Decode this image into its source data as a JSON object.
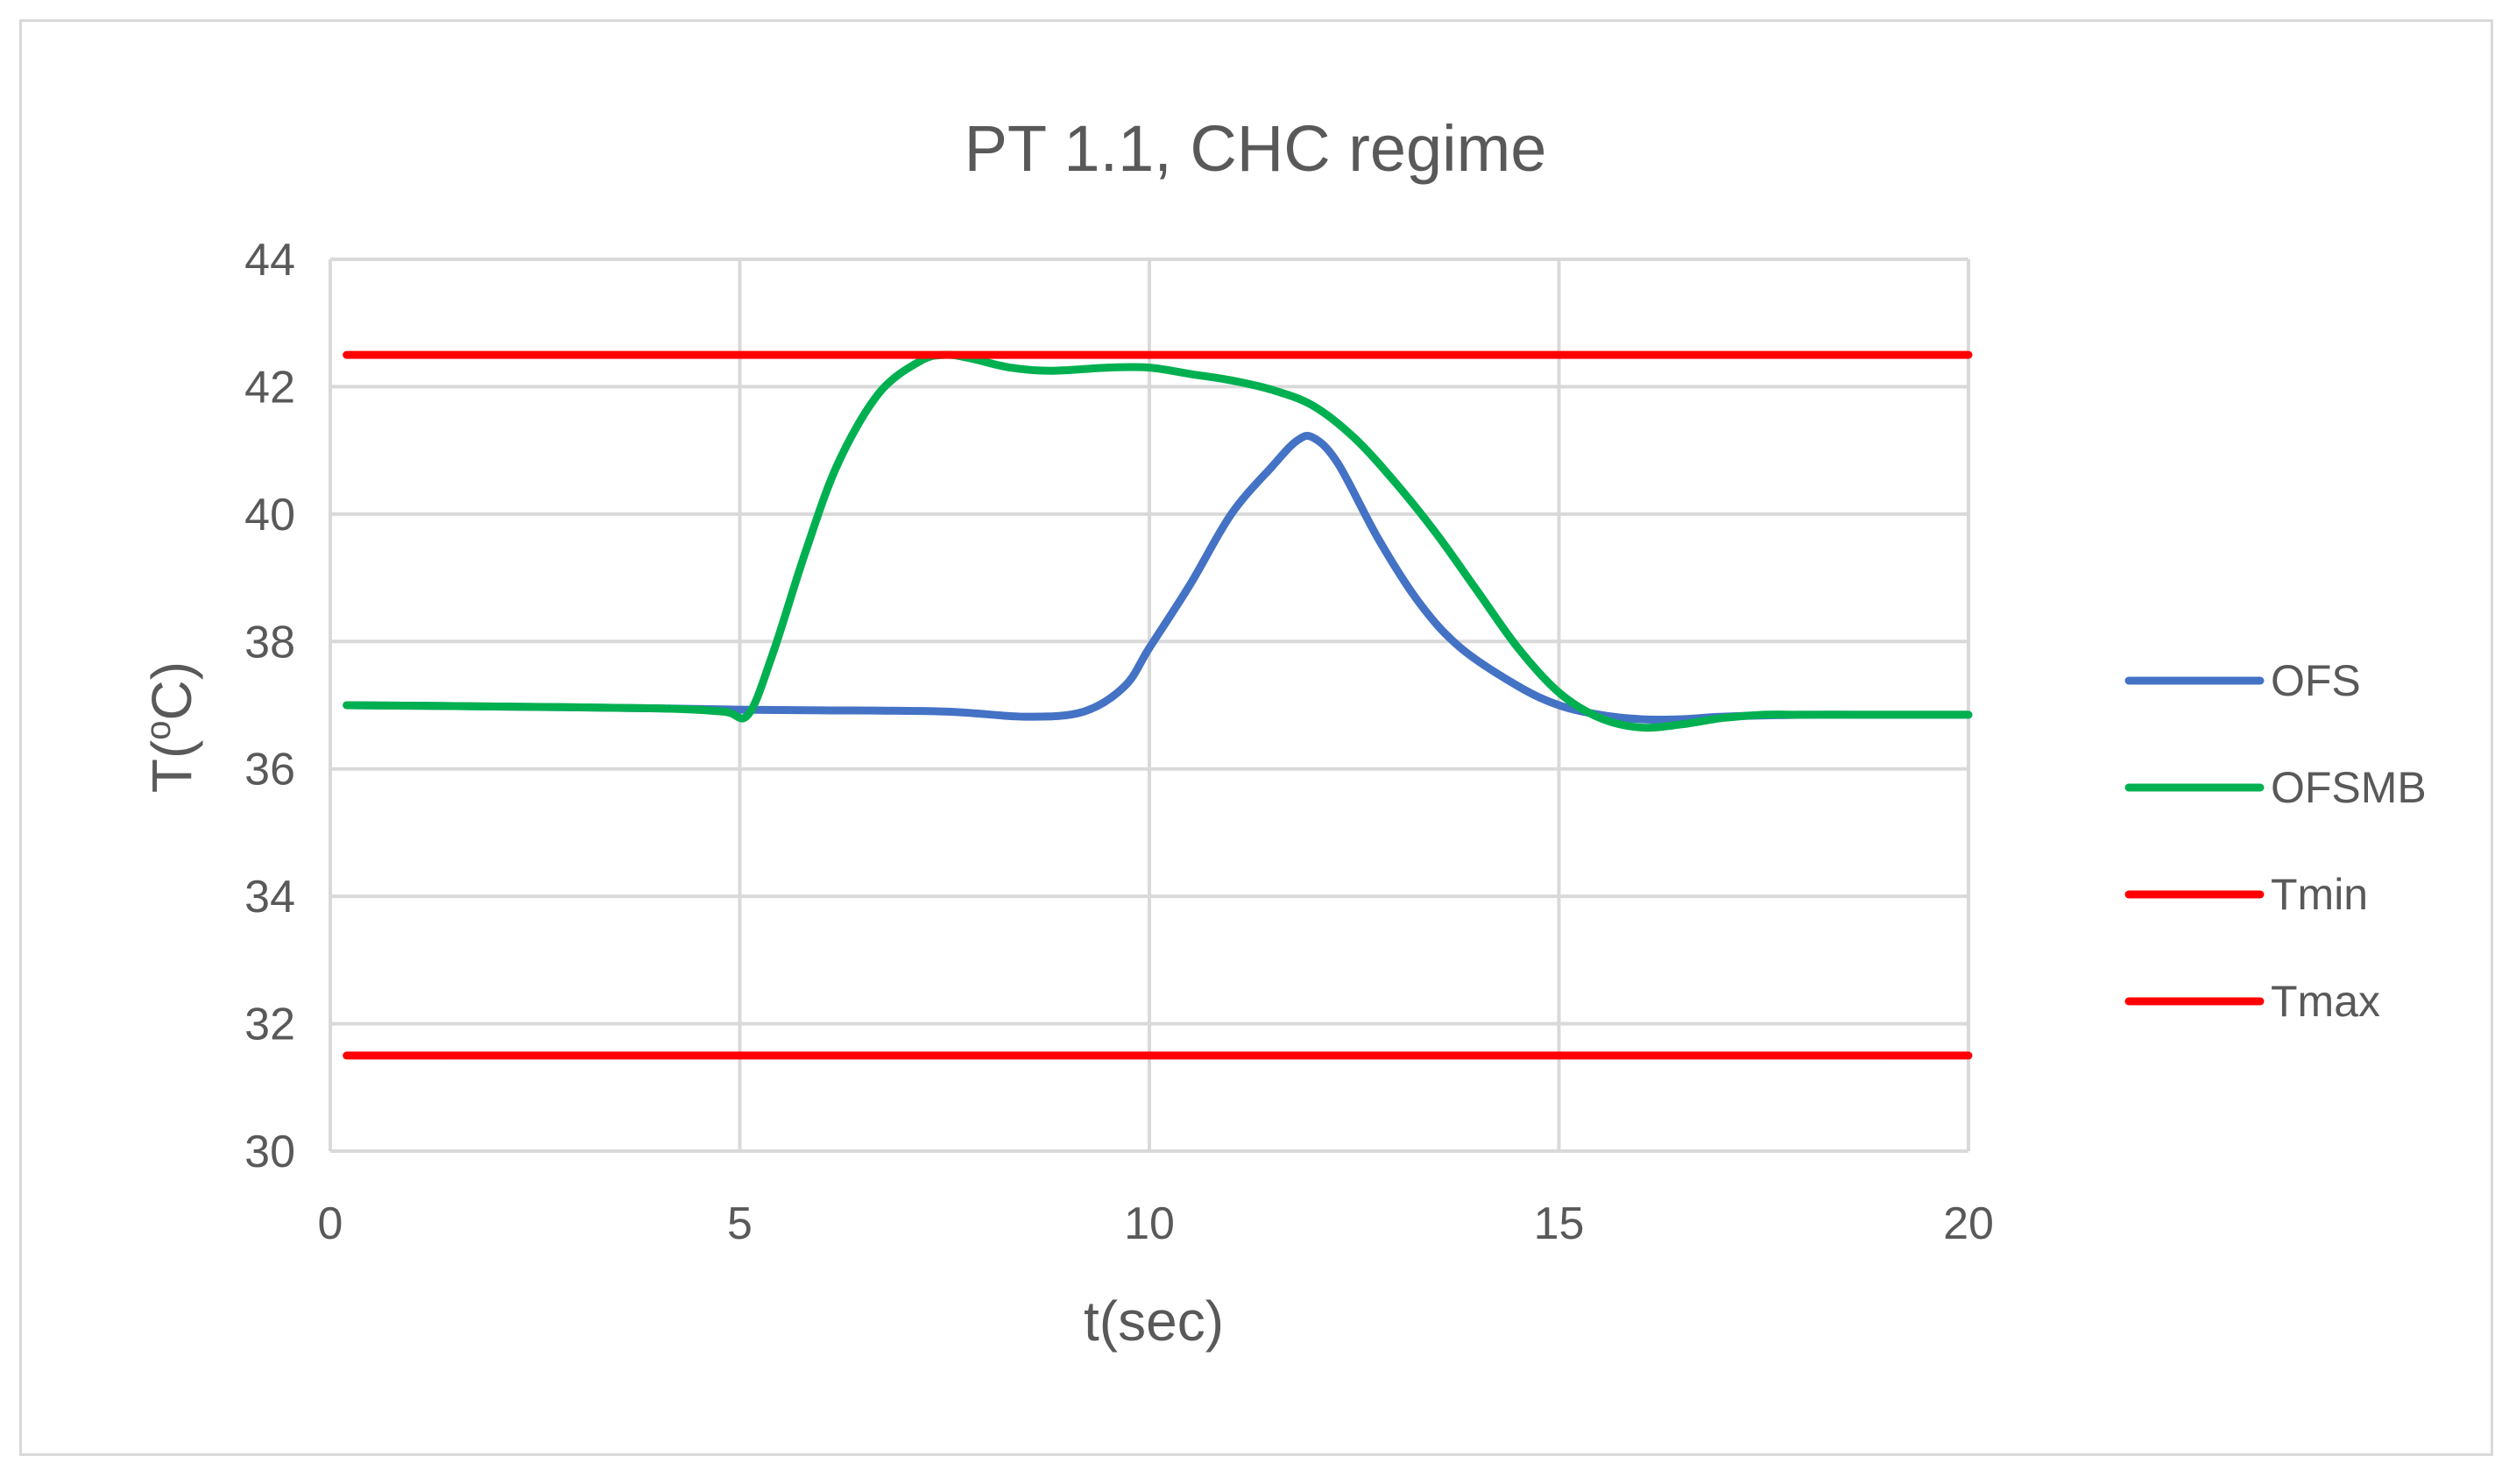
{
  "chart_data": {
    "type": "line",
    "title": "PT 1.1, CHC regime",
    "xlabel": "t(sec)",
    "ylabel_main": "T(",
    "ylabel_sup": "o",
    "ylabel_end": "C)",
    "xlim": [
      0,
      20
    ],
    "ylim": [
      30,
      44
    ],
    "xticks": [
      0,
      5,
      10,
      15,
      20
    ],
    "yticks": [
      30,
      32,
      34,
      36,
      38,
      40,
      42,
      44
    ],
    "grid": true,
    "legend_position": "right",
    "series": [
      {
        "name": "OFS",
        "color": "#4472C4",
        "x": [
          0.2,
          2,
          4,
          5,
          6,
          7.5,
          8.5,
          9.2,
          9.7,
          10,
          10.5,
          11,
          11.5,
          11.8,
          12,
          12.3,
          12.8,
          13.3,
          13.8,
          14.5,
          15,
          15.5,
          16,
          16.5,
          17,
          18,
          19,
          20
        ],
        "y": [
          37.0,
          36.98,
          36.95,
          36.93,
          36.92,
          36.9,
          36.82,
          36.9,
          37.3,
          37.9,
          38.9,
          40.0,
          40.75,
          41.15,
          41.2,
          40.8,
          39.6,
          38.6,
          37.9,
          37.3,
          37.0,
          36.85,
          36.78,
          36.78,
          36.82,
          36.85,
          36.85,
          36.85
        ]
      },
      {
        "name": "OFSMB",
        "color": "#00B050",
        "x": [
          0.2,
          2,
          4,
          4.8,
          5.1,
          5.4,
          5.8,
          6.2,
          6.7,
          7.2,
          7.5,
          7.8,
          8.3,
          8.8,
          9.5,
          10,
          10.5,
          11,
          11.5,
          12,
          12.5,
          13,
          13.5,
          14,
          14.5,
          15,
          15.5,
          16,
          16.5,
          17,
          17.5,
          18,
          19,
          20
        ],
        "y": [
          37.0,
          36.98,
          36.95,
          36.9,
          36.85,
          37.8,
          39.4,
          40.8,
          41.9,
          42.4,
          42.5,
          42.45,
          42.3,
          42.25,
          42.3,
          42.3,
          42.2,
          42.1,
          41.95,
          41.7,
          41.2,
          40.5,
          39.7,
          38.8,
          37.9,
          37.2,
          36.8,
          36.65,
          36.7,
          36.8,
          36.85,
          36.85,
          36.85,
          36.85
        ]
      },
      {
        "name": "Tmin",
        "color": "#FF0000",
        "x": [
          0.2,
          20
        ],
        "y": [
          42.5,
          42.5
        ]
      },
      {
        "name": "Tmax",
        "color": "#FF0000",
        "x": [
          0.2,
          20
        ],
        "y": [
          31.5,
          31.5
        ]
      }
    ]
  }
}
